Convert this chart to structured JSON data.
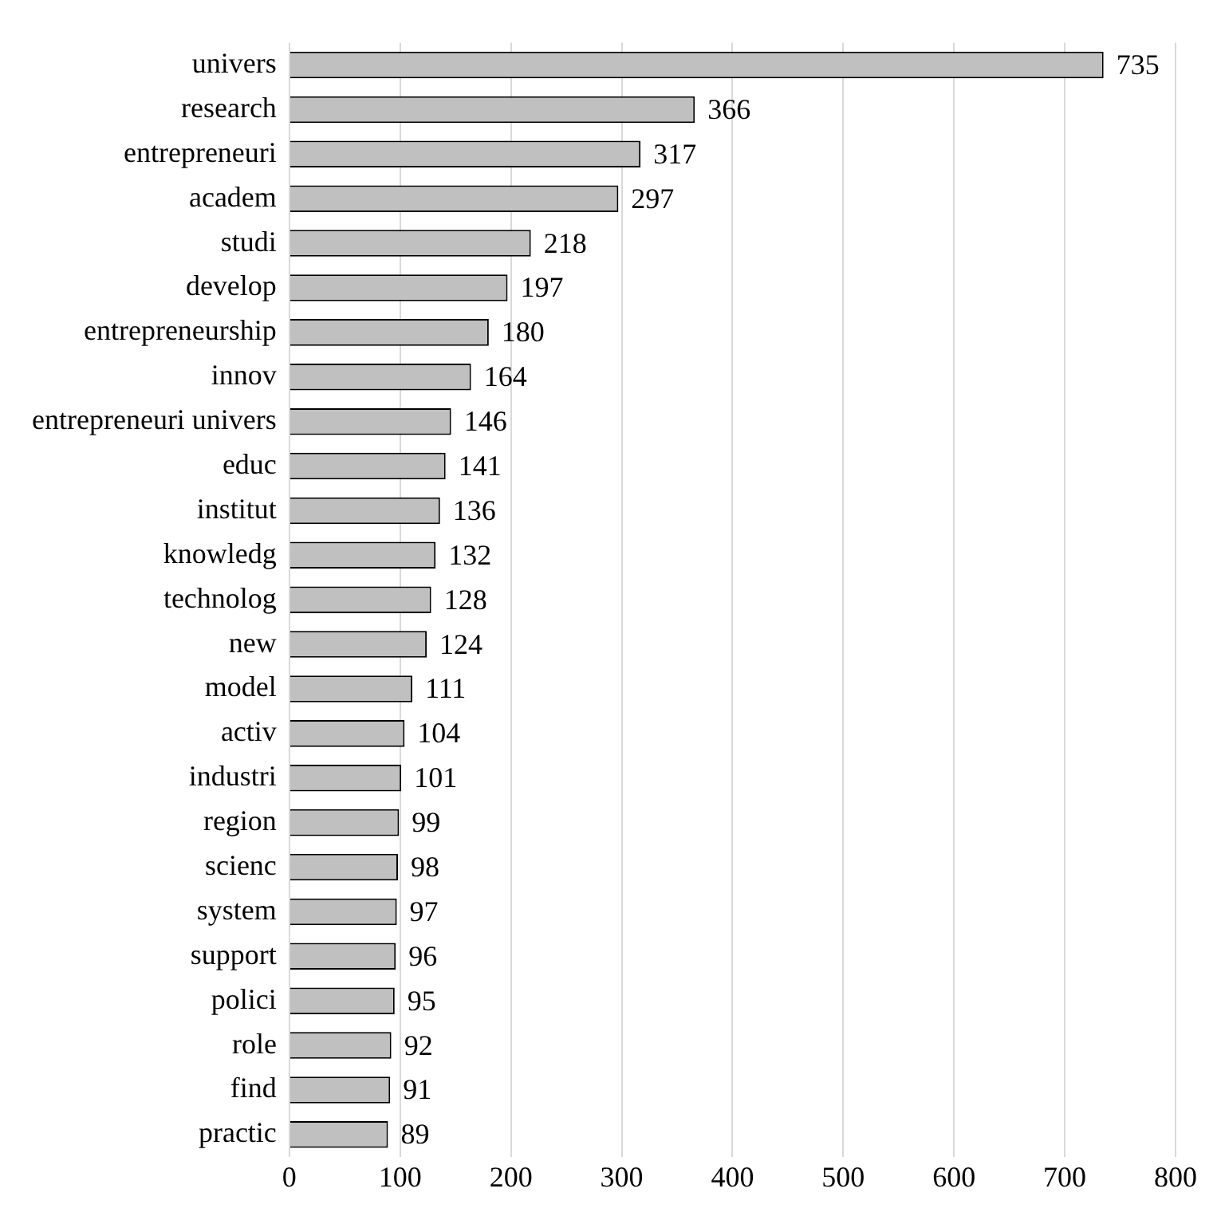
{
  "chart_data": {
    "type": "bar",
    "orientation": "horizontal",
    "categories": [
      "univers",
      "research",
      "entrepreneuri",
      "academ",
      "studi",
      "develop",
      "entrepreneurship",
      "innov",
      "entrepreneuri univers",
      "educ",
      "institut",
      "knowledg",
      "technolog",
      "new",
      "model",
      "activ",
      "industri",
      "region",
      "scienc",
      "system",
      "support",
      "polici",
      "role",
      "find",
      "practic"
    ],
    "values": [
      735,
      366,
      317,
      297,
      218,
      197,
      180,
      164,
      146,
      141,
      136,
      132,
      128,
      124,
      111,
      104,
      101,
      99,
      98,
      97,
      96,
      95,
      92,
      91,
      89
    ],
    "color": "#c0c0c0",
    "xlim": [
      0,
      800
    ],
    "xticks": [
      0,
      100,
      200,
      300,
      400,
      500,
      600,
      700,
      800
    ],
    "grid": "x",
    "data_labels": true
  }
}
